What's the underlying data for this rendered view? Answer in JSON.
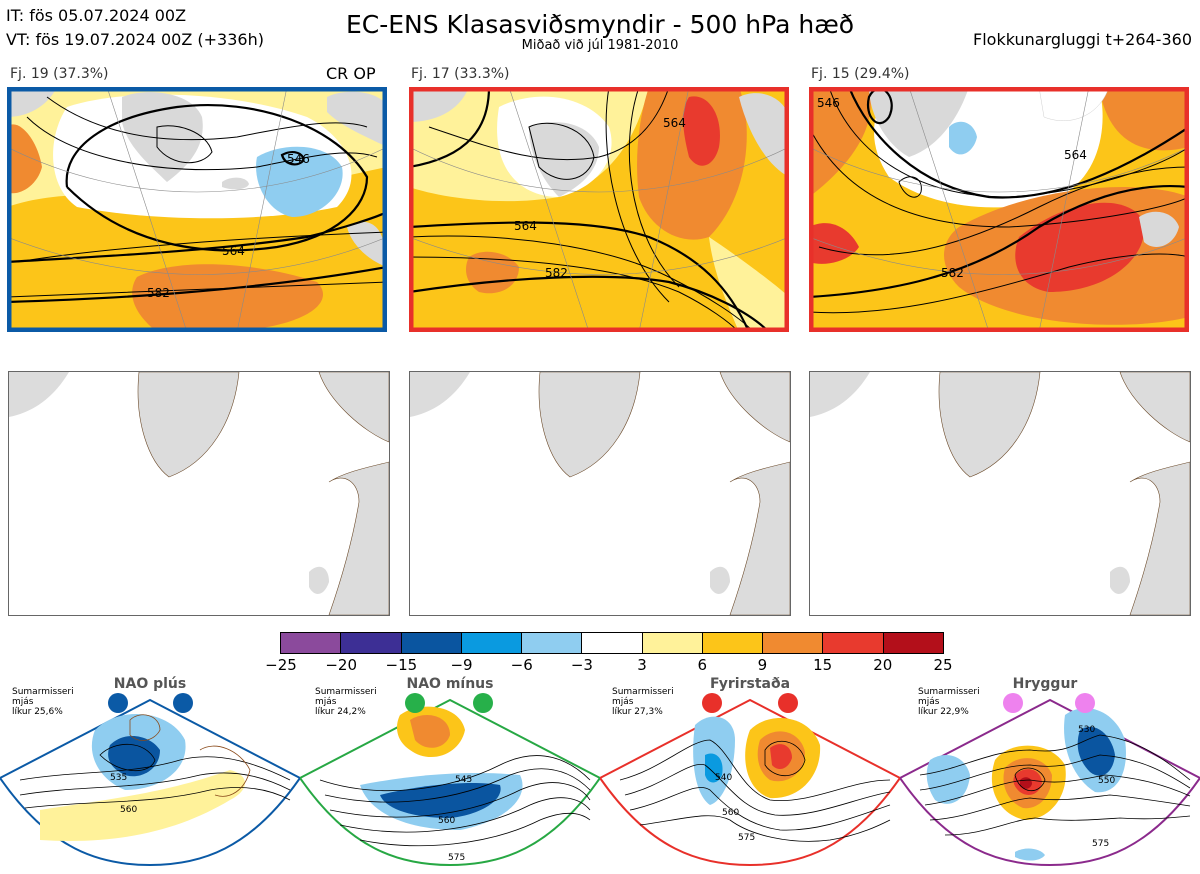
{
  "header": {
    "it": "IT: fös 05.07.2024 00Z",
    "vt": "VT: fös 19.07.2024 00Z  (+336h)",
    "title": "EC-ENS Klasasviðsmyndir - 500 hPa hæð",
    "subtitle": "Miðað við júl 1981-2010",
    "window": "Flokkunargluggi t+264-360"
  },
  "clusters": [
    {
      "label": "Fj. 19 (37.3%)",
      "tag": "CR OP",
      "border_color": "#0b5aa6",
      "contours": [
        "546",
        "564",
        "582"
      ]
    },
    {
      "label": "Fj. 17 (33.3%)",
      "tag": "",
      "border_color": "#e8302a",
      "contours": [
        "564",
        "582",
        "564"
      ]
    },
    {
      "label": "Fj. 15 (29.4%)",
      "tag": "",
      "border_color": "#e8302a",
      "contours": [
        "546",
        "564",
        "582"
      ]
    }
  ],
  "colorbar": {
    "colors": [
      "#8b4a9c",
      "#3d2f95",
      "#0a55a0",
      "#0a9ae0",
      "#8fcdf0",
      "#ffffff",
      "#fff29a",
      "#fcc519",
      "#f08a30",
      "#e83a2e",
      "#b30f1a"
    ],
    "ticks": [
      "−25",
      "−20",
      "−15",
      "−9",
      "−6",
      "−3",
      "3",
      "6",
      "9",
      "15",
      "20",
      "25"
    ]
  },
  "regimes": [
    {
      "name": "NAO plús",
      "note1": "Sumarmisseri",
      "note2": "mjás",
      "note3": "líkur 25,6%",
      "color": "#0b5aa6",
      "dot": "#0b5aa6",
      "contours": [
        "535",
        "560"
      ]
    },
    {
      "name": "NAO mínus",
      "note1": "Sumarmisseri",
      "note2": "mjás",
      "note3": "líkur 24,2%",
      "color": "#27a844",
      "dot": "#27b04a",
      "contours": [
        "545",
        "560",
        "575"
      ]
    },
    {
      "name": "Fyrirstaða",
      "note1": "Sumarmisseri",
      "note2": "mjás",
      "note3": "líkur 27,3%",
      "color": "#e8302a",
      "dot": "#e8302a",
      "contours": [
        "540",
        "560",
        "575"
      ]
    },
    {
      "name": "Hryggur",
      "note1": "Sumarmisseri",
      "note2": "mjás",
      "note3": "líkur 22,9%",
      "color": "#8b2a8c",
      "dot": "#ee82ee",
      "contours": [
        "530",
        "550",
        "575"
      ]
    }
  ]
}
